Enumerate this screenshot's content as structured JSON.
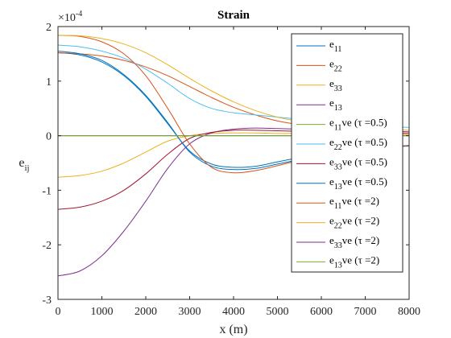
{
  "chart_data": {
    "type": "line",
    "title": "Strain",
    "xlabel": "x (m)",
    "ylabel": "e",
    "ylabel_sub": "ij",
    "exponent_label": "×10",
    "exponent_power": "-4",
    "xlim": [
      0,
      8000
    ],
    "ylim": [
      -3,
      2
    ],
    "x_ticks": [
      "0",
      "1000",
      "2000",
      "3000",
      "4000",
      "5000",
      "6000",
      "7000",
      "8000"
    ],
    "y_ticks": [
      "-3",
      "-2",
      "-1",
      "0",
      "1",
      "2"
    ],
    "grid": false,
    "legend_position": "top-right",
    "x": [
      0,
      500,
      1000,
      1500,
      2000,
      2500,
      3000,
      3500,
      4000,
      4500,
      5000,
      5500,
      6000,
      6500,
      7000,
      7500,
      8000
    ],
    "series": [
      {
        "name": "e11",
        "base": "e",
        "sub": "11",
        "suffix": "",
        "color": "#0072BD",
        "values": [
          1.52,
          1.48,
          1.35,
          1.1,
          0.72,
          0.22,
          -0.28,
          -0.52,
          -0.58,
          -0.56,
          -0.48,
          -0.4,
          -0.33,
          -0.27,
          -0.23,
          -0.2,
          -0.18
        ]
      },
      {
        "name": "e22",
        "base": "e",
        "sub": "22",
        "suffix": "",
        "color": "#D95319",
        "values": [
          1.52,
          1.5,
          1.46,
          1.38,
          1.26,
          1.1,
          0.9,
          0.7,
          0.52,
          0.38,
          0.27,
          0.2,
          0.15,
          0.12,
          0.1,
          0.08,
          0.07
        ]
      },
      {
        "name": "e33",
        "base": "e",
        "sub": "33",
        "suffix": "",
        "color": "#EDB120",
        "values": [
          -0.76,
          -0.73,
          -0.65,
          -0.5,
          -0.3,
          -0.1,
          0.0,
          0.04,
          0.05,
          0.05,
          0.04,
          0.04,
          0.03,
          0.03,
          0.02,
          0.02,
          0.02
        ]
      },
      {
        "name": "e13",
        "base": "e",
        "sub": "13",
        "suffix": "",
        "color": "#7E2F8E",
        "values": [
          -2.57,
          -2.48,
          -2.2,
          -1.75,
          -1.2,
          -0.6,
          -0.15,
          0.05,
          0.12,
          0.14,
          0.13,
          0.12,
          0.11,
          0.1,
          0.09,
          0.08,
          0.07
        ]
      },
      {
        "name": "e11ve (τ=0.5)",
        "base": "e",
        "sub": "11",
        "suffix": "ve (τ =0.5)",
        "color": "#77AC30",
        "values": [
          0.0,
          0.0,
          0.0,
          0.0,
          0.0,
          0.0,
          0.0,
          0.0,
          0.0,
          0.0,
          0.0,
          0.0,
          0.0,
          0.0,
          0.0,
          0.0,
          0.0
        ]
      },
      {
        "name": "e22ve (τ=0.5)",
        "base": "e",
        "sub": "22",
        "suffix": "ve (τ =0.5)",
        "color": "#4DBEEE",
        "values": [
          1.66,
          1.63,
          1.55,
          1.42,
          1.22,
          0.96,
          0.68,
          0.5,
          0.42,
          0.38,
          0.34,
          0.3,
          0.26,
          0.22,
          0.19,
          0.17,
          0.15
        ]
      },
      {
        "name": "e33ve (τ=0.5)",
        "base": "e",
        "sub": "33",
        "suffix": "ve (τ =0.5)",
        "color": "#A2142F",
        "values": [
          -1.35,
          -1.31,
          -1.2,
          -1.0,
          -0.7,
          -0.34,
          -0.05,
          0.06,
          0.1,
          0.1,
          0.09,
          0.08,
          0.07,
          0.06,
          0.05,
          0.05,
          0.04
        ]
      },
      {
        "name": "e13ve (τ=0.5)",
        "base": "e",
        "sub": "13",
        "suffix": "ve (τ =0.5)",
        "color": "#0072BD",
        "values": [
          1.55,
          1.5,
          1.38,
          1.12,
          0.74,
          0.24,
          -0.3,
          -0.56,
          -0.62,
          -0.6,
          -0.52,
          -0.44,
          -0.36,
          -0.29,
          -0.24,
          -0.21,
          -0.19
        ]
      },
      {
        "name": "e11ve (τ=2)",
        "base": "e",
        "sub": "11",
        "suffix": "ve (τ =2)",
        "color": "#D95319",
        "values": [
          1.84,
          1.82,
          1.72,
          1.5,
          1.1,
          0.5,
          -0.15,
          -0.58,
          -0.68,
          -0.64,
          -0.55,
          -0.45,
          -0.36,
          -0.28,
          -0.23,
          -0.2,
          -0.18
        ]
      },
      {
        "name": "e22ve (τ=2)",
        "base": "e",
        "sub": "22",
        "suffix": "ve (τ =2)",
        "color": "#EDB120",
        "values": [
          1.84,
          1.83,
          1.78,
          1.68,
          1.52,
          1.3,
          1.05,
          0.82,
          0.62,
          0.46,
          0.34,
          0.26,
          0.2,
          0.16,
          0.13,
          0.11,
          0.1
        ]
      },
      {
        "name": "e33ve (τ=2)",
        "base": "e",
        "sub": "33",
        "suffix": "ve (τ =2)",
        "color": "#7E2F8E",
        "values": [
          0.0,
          0.0,
          0.0,
          0.0,
          0.0,
          0.0,
          0.0,
          0.0,
          0.0,
          0.0,
          0.0,
          0.0,
          0.0,
          0.0,
          0.0,
          0.0,
          0.0
        ]
      },
      {
        "name": "e13ve (τ=2)",
        "base": "e",
        "sub": "13",
        "suffix": "ve (τ =2)",
        "color": "#77AC30",
        "values": [
          0.0,
          0.0,
          0.0,
          0.0,
          0.0,
          0.0,
          0.0,
          0.0,
          0.0,
          0.0,
          0.0,
          0.0,
          0.0,
          0.0,
          0.0,
          0.0,
          0.0
        ]
      }
    ]
  }
}
